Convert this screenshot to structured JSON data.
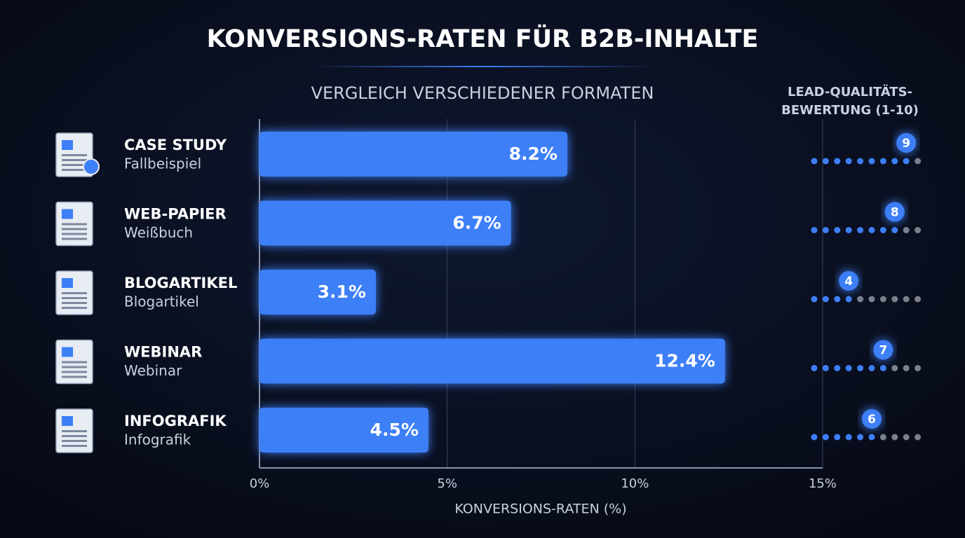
{
  "chart_data": {
    "type": "bar",
    "orientation": "horizontal",
    "title": "KONVERSIONS-RATEN FÜR B2B-INHALTE",
    "subtitle": "VERGLEICH VERSCHIEDENER FORMATEN",
    "x_label": "KONVERSIONS-RATEN (%)",
    "categories": [
      "CASE STUDY",
      "WEB-PAPIER",
      "BLOGARTIKEL",
      "WEBINAR",
      "INFOGRAFIK"
    ],
    "subcategories": [
      "Fallbeispiel",
      "Weißbuch",
      "Blogartikel",
      "Webinar",
      "Infografik"
    ],
    "values": [
      8.2,
      6.7,
      3.1,
      12.4,
      4.5
    ],
    "value_labels": [
      "8.2%",
      "6.7%",
      "3.1%",
      "12.4%",
      "4.5%"
    ],
    "color": "#3d7ff7",
    "xlim": [
      0,
      15
    ],
    "xticks": [
      {
        "value": 0,
        "label": "0%"
      },
      {
        "value": 5,
        "label": "5%"
      },
      {
        "value": 10,
        "label": "10%"
      },
      {
        "value": 15,
        "label": "15%"
      }
    ],
    "grid": true,
    "rating_title": [
      "LEAD-QUALITÄTS-",
      "BEWERTUNG (1-10)"
    ],
    "ratings": [
      9,
      8,
      4,
      7,
      6
    ],
    "rating_lim": [
      0,
      10
    ]
  }
}
